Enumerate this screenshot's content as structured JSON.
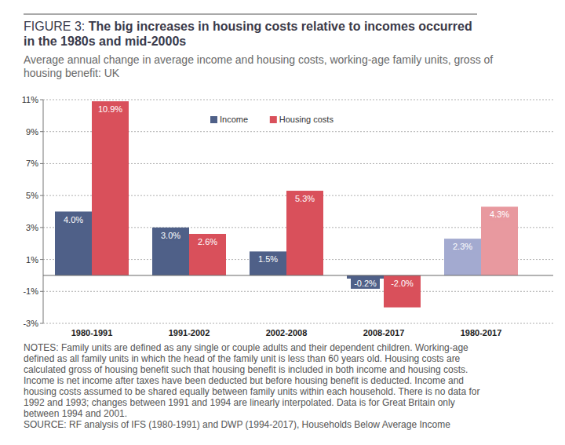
{
  "chart_data": {
    "type": "bar",
    "title": "FIGURE 3: The big increases in housing costs relative to incomes occurred in the 1980s and mid-2000s",
    "subtitle": "Average annual change in average income and housing costs, working-age family units, gross of housing benefit: UK",
    "notes": "NOTES: Family units are defined as any single or couple adults and their dependent children. Working-age defined as all family units in which the head of the family unit is less than 60 years old. Housing costs are calculated gross of housing benefit such that housing benefit is included in both income and housing costs. Income is net income after taxes have been deducted but before housing benefit is deducted. Income and housing costs assumed to be shared equally between family units within each household. There is no data for 1992 and 1993; changes between 1991 and 1994 are linearly interpolated. Data is for Great Britain only between 1994 and 2001.",
    "source": "SOURCE: RF analysis of IFS (1980-1991) and DWP (1994-2017), Households Below Average Income",
    "categories": [
      "1980-1991",
      "1991-2002",
      "2002-2008",
      "2008-2017",
      "1980-2017"
    ],
    "series": [
      {
        "name": "Income",
        "color": "#4f6088",
        "colors": [
          "#4f6088",
          "#4f6088",
          "#4f6088",
          "#4f6088",
          "#a3aad0"
        ],
        "values": [
          4.0,
          3.0,
          1.5,
          -0.2,
          2.3
        ],
        "value_labels": [
          "4.0%",
          "3.0%",
          "1.5%",
          "-0.2%",
          "2.3%"
        ]
      },
      {
        "name": "Housing costs",
        "color": "#d9505b",
        "colors": [
          "#d9505b",
          "#d9505b",
          "#d9505b",
          "#d9505b",
          "#e8999f"
        ],
        "values": [
          10.9,
          2.6,
          5.3,
          -2.0,
          4.3
        ],
        "value_labels": [
          "10.9%",
          "2.6%",
          "5.3%",
          "-2.0%",
          "4.3%"
        ]
      }
    ],
    "ylim": [
      -3,
      11
    ],
    "yticks": [
      {
        "value": -3,
        "label": "-3%"
      },
      {
        "value": -1,
        "label": "-1%"
      },
      {
        "value": 1,
        "label": "1%"
      },
      {
        "value": 3,
        "label": "3%"
      },
      {
        "value": 5,
        "label": "5%"
      },
      {
        "value": 7,
        "label": "7%"
      },
      {
        "value": 9,
        "label": "9%"
      },
      {
        "value": 11,
        "label": "11%"
      }
    ],
    "grid": true,
    "legend": "top",
    "data_labels": true
  }
}
